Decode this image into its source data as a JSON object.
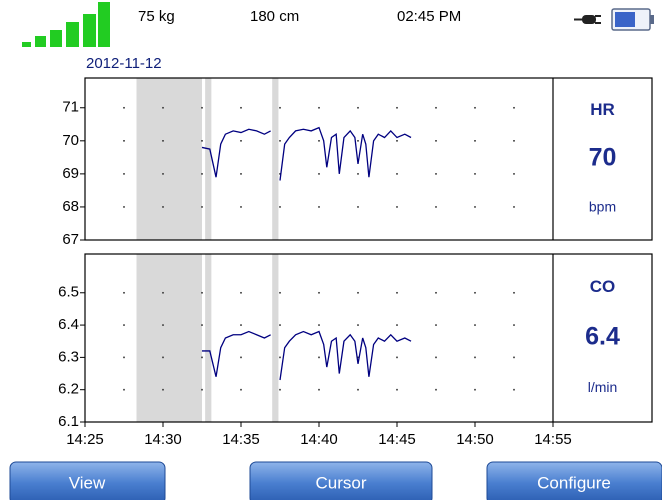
{
  "status_bar": {
    "weight": "75 kg",
    "height": "180 cm",
    "time": "02:45 PM"
  },
  "date": "2012-11-12",
  "chart_data": [
    {
      "type": "line",
      "readout": {
        "label": "HR",
        "value": 70,
        "unit": "bpm"
      },
      "xlim": [
        865,
        895
      ],
      "ylim": [
        67,
        71.9
      ],
      "yticks": [
        67,
        68,
        69,
        70,
        71
      ],
      "grid": true,
      "color": "#000080",
      "shaded_regions": [
        [
          868.3,
          872.5
        ],
        [
          872.7,
          873.1
        ],
        [
          877.0,
          877.4
        ]
      ],
      "x": [
        872.5,
        873.0,
        873.4,
        873.7,
        874.0,
        874.5,
        875.0,
        875.5,
        876.0,
        876.5,
        876.9,
        877.2,
        877.5,
        877.8,
        878.1,
        878.5,
        879.0,
        879.5,
        880.0,
        880.3,
        880.5,
        880.8,
        881.1,
        881.3,
        881.6,
        882.0,
        882.3,
        882.5,
        882.8,
        883.0,
        883.2,
        883.5,
        883.8,
        884.2,
        884.6,
        885.0,
        885.5,
        885.9
      ],
      "series": [
        {
          "name": "HR",
          "color": "#000080",
          "values": [
            69.8,
            69.75,
            68.9,
            69.9,
            70.2,
            70.3,
            70.25,
            70.35,
            70.3,
            70.2,
            70.3,
            null,
            68.8,
            69.9,
            70.1,
            70.3,
            70.35,
            70.3,
            70.4,
            70.0,
            69.2,
            70.1,
            70.2,
            69.0,
            70.1,
            70.3,
            70.1,
            69.3,
            70.2,
            69.9,
            68.9,
            70.0,
            70.2,
            70.1,
            70.3,
            70.1,
            70.2,
            70.1
          ]
        }
      ]
    },
    {
      "type": "line",
      "readout": {
        "label": "CO",
        "value": 6.4,
        "unit": "l/min"
      },
      "xlim": [
        865,
        895
      ],
      "xticks": [
        {
          "value": 865,
          "label": "14:25"
        },
        {
          "value": 870,
          "label": "14:30"
        },
        {
          "value": 875,
          "label": "14:35"
        },
        {
          "value": 880,
          "label": "14:40"
        },
        {
          "value": 885,
          "label": "14:45"
        },
        {
          "value": 890,
          "label": "14:50"
        },
        {
          "value": 895,
          "label": "14:55"
        }
      ],
      "ylim": [
        6.1,
        6.62
      ],
      "yticks": [
        6.1,
        6.2,
        6.3,
        6.4,
        6.5
      ],
      "grid": true,
      "color": "#000080",
      "shaded_regions": [
        [
          868.3,
          872.5
        ],
        [
          872.7,
          873.1
        ],
        [
          877.0,
          877.4
        ]
      ],
      "x": [
        872.5,
        873.0,
        873.4,
        873.7,
        874.0,
        874.5,
        875.0,
        875.5,
        876.0,
        876.5,
        876.9,
        877.2,
        877.5,
        877.8,
        878.1,
        878.5,
        879.0,
        879.5,
        880.0,
        880.3,
        880.5,
        880.8,
        881.1,
        881.3,
        881.6,
        882.0,
        882.3,
        882.5,
        882.8,
        883.0,
        883.2,
        883.5,
        883.8,
        884.2,
        884.6,
        885.0,
        885.5,
        885.9
      ],
      "series": [
        {
          "name": "CO",
          "color": "#000080",
          "values": [
            6.32,
            6.32,
            6.24,
            6.33,
            6.36,
            6.37,
            6.37,
            6.38,
            6.37,
            6.36,
            6.37,
            null,
            6.23,
            6.33,
            6.35,
            6.37,
            6.38,
            6.37,
            6.38,
            6.34,
            6.27,
            6.35,
            6.36,
            6.25,
            6.35,
            6.37,
            6.35,
            6.28,
            6.36,
            6.33,
            6.24,
            6.34,
            6.36,
            6.35,
            6.37,
            6.35,
            6.36,
            6.35
          ]
        }
      ]
    }
  ],
  "buttons": [
    "View",
    "Cursor",
    "Configure"
  ]
}
